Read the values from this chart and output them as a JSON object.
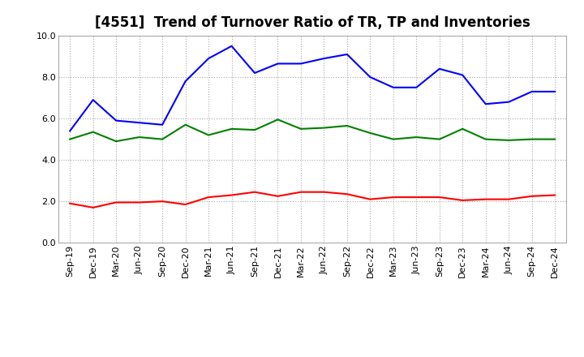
{
  "title": "[4551]  Trend of Turnover Ratio of TR, TP and Inventories",
  "x_labels": [
    "Sep-19",
    "Dec-19",
    "Mar-20",
    "Jun-20",
    "Sep-20",
    "Dec-20",
    "Mar-21",
    "Jun-21",
    "Sep-21",
    "Dec-21",
    "Mar-22",
    "Jun-22",
    "Sep-22",
    "Dec-22",
    "Mar-23",
    "Jun-23",
    "Sep-23",
    "Dec-23",
    "Mar-24",
    "Jun-24",
    "Sep-24",
    "Dec-24"
  ],
  "trade_receivables": [
    1.9,
    1.7,
    1.95,
    1.95,
    2.0,
    1.85,
    2.2,
    2.3,
    2.45,
    2.25,
    2.45,
    2.45,
    2.35,
    2.1,
    2.2,
    2.2,
    2.2,
    2.05,
    2.1,
    2.1,
    2.25,
    2.3
  ],
  "trade_payables": [
    5.4,
    6.9,
    5.9,
    5.8,
    5.7,
    7.8,
    8.9,
    9.5,
    8.2,
    8.65,
    8.65,
    8.9,
    9.1,
    8.0,
    7.5,
    7.5,
    8.4,
    8.1,
    6.7,
    6.8,
    7.3,
    7.3
  ],
  "inventories": [
    5.0,
    5.35,
    4.9,
    5.1,
    5.0,
    5.7,
    5.2,
    5.5,
    5.45,
    5.95,
    5.5,
    5.55,
    5.65,
    5.3,
    5.0,
    5.1,
    5.0,
    5.5,
    5.0,
    4.95,
    5.0,
    5.0
  ],
  "tr_color": "#ff0000",
  "tp_color": "#0000ff",
  "inv_color": "#008000",
  "ylim": [
    0.0,
    10.0
  ],
  "yticks": [
    0.0,
    2.0,
    4.0,
    6.0,
    8.0,
    10.0
  ],
  "background_color": "#ffffff",
  "grid_color": "#aaaaaa",
  "title_fontsize": 12,
  "legend_fontsize": 9.5,
  "tick_fontsize": 8
}
